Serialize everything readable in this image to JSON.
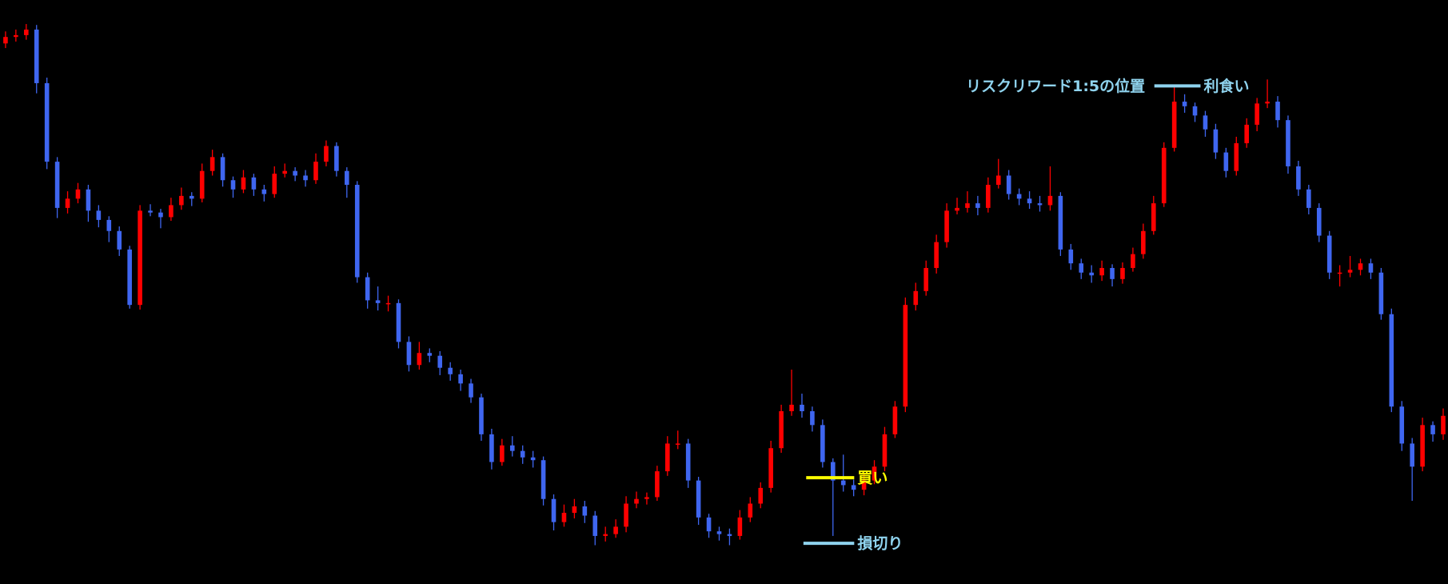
{
  "chart_data": {
    "type": "candlestick",
    "up_color": "#ff0000",
    "down_color": "#3f66f0",
    "ylim": [
      0,
      632
    ],
    "ohlc": [
      [
        585,
        598,
        580,
        592
      ],
      [
        592,
        600,
        587,
        594
      ],
      [
        594,
        606,
        589,
        600
      ],
      [
        600,
        605,
        531,
        542
      ],
      [
        542,
        548,
        449,
        457
      ],
      [
        457,
        462,
        396,
        407
      ],
      [
        407,
        425,
        401,
        417
      ],
      [
        417,
        434,
        412,
        427
      ],
      [
        427,
        432,
        392,
        404
      ],
      [
        404,
        410,
        386,
        394
      ],
      [
        394,
        398,
        370,
        382
      ],
      [
        382,
        387,
        355,
        362
      ],
      [
        362,
        366,
        298,
        302
      ],
      [
        302,
        410,
        297,
        404
      ],
      [
        404,
        411,
        398,
        402
      ],
      [
        402,
        406,
        385,
        397
      ],
      [
        397,
        418,
        393,
        410
      ],
      [
        410,
        429,
        405,
        420
      ],
      [
        420,
        424,
        409,
        417
      ],
      [
        417,
        455,
        413,
        447
      ],
      [
        447,
        470,
        442,
        462
      ],
      [
        462,
        466,
        430,
        437
      ],
      [
        437,
        441,
        418,
        427
      ],
      [
        427,
        448,
        423,
        440
      ],
      [
        440,
        444,
        420,
        427
      ],
      [
        427,
        432,
        414,
        422
      ],
      [
        422,
        452,
        418,
        444
      ],
      [
        444,
        455,
        440,
        447
      ],
      [
        447,
        451,
        436,
        442
      ],
      [
        442,
        448,
        430,
        437
      ],
      [
        437,
        466,
        433,
        457
      ],
      [
        457,
        480,
        452,
        474
      ],
      [
        474,
        478,
        441,
        447
      ],
      [
        447,
        451,
        418,
        432
      ],
      [
        432,
        436,
        326,
        332
      ],
      [
        332,
        337,
        298,
        307
      ],
      [
        307,
        322,
        296,
        304
      ],
      [
        304,
        312,
        295,
        304
      ],
      [
        304,
        308,
        255,
        262
      ],
      [
        262,
        268,
        230,
        237
      ],
      [
        237,
        262,
        232,
        250
      ],
      [
        250,
        255,
        240,
        247
      ],
      [
        247,
        252,
        226,
        234
      ],
      [
        234,
        240,
        220,
        227
      ],
      [
        227,
        232,
        209,
        217
      ],
      [
        217,
        222,
        196,
        202
      ],
      [
        202,
        206,
        155,
        162
      ],
      [
        162,
        168,
        124,
        132
      ],
      [
        132,
        157,
        128,
        150
      ],
      [
        150,
        160,
        138,
        144
      ],
      [
        144,
        150,
        130,
        137
      ],
      [
        137,
        144,
        126,
        134
      ],
      [
        134,
        138,
        85,
        92
      ],
      [
        92,
        97,
        58,
        67
      ],
      [
        67,
        86,
        62,
        77
      ],
      [
        77,
        92,
        71,
        84
      ],
      [
        84,
        90,
        66,
        74
      ],
      [
        74,
        79,
        42,
        52
      ],
      [
        52,
        62,
        46,
        54
      ],
      [
        54,
        70,
        50,
        62
      ],
      [
        62,
        95,
        56,
        87
      ],
      [
        87,
        100,
        82,
        92
      ],
      [
        92,
        99,
        86,
        94
      ],
      [
        94,
        128,
        90,
        122
      ],
      [
        122,
        160,
        117,
        152
      ],
      [
        152,
        166,
        146,
        152
      ],
      [
        152,
        157,
        104,
        112
      ],
      [
        112,
        116,
        64,
        72
      ],
      [
        72,
        76,
        50,
        57
      ],
      [
        57,
        62,
        47,
        54
      ],
      [
        54,
        60,
        42,
        52
      ],
      [
        52,
        80,
        48,
        72
      ],
      [
        72,
        94,
        67,
        87
      ],
      [
        87,
        110,
        82,
        104
      ],
      [
        104,
        155,
        99,
        147
      ],
      [
        147,
        194,
        142,
        187
      ],
      [
        187,
        232,
        182,
        194
      ],
      [
        194,
        206,
        180,
        187
      ],
      [
        187,
        192,
        165,
        172
      ],
      [
        172,
        178,
        126,
        132
      ],
      [
        132,
        136,
        52,
        112
      ],
      [
        112,
        140,
        100,
        107
      ],
      [
        107,
        113,
        95,
        102
      ],
      [
        102,
        120,
        96,
        112
      ],
      [
        112,
        134,
        108,
        127
      ],
      [
        127,
        170,
        122,
        162
      ],
      [
        162,
        198,
        158,
        192
      ],
      [
        192,
        310,
        186,
        302
      ],
      [
        302,
        326,
        296,
        317
      ],
      [
        317,
        350,
        312,
        342
      ],
      [
        342,
        378,
        336,
        370
      ],
      [
        370,
        412,
        364,
        404
      ],
      [
        404,
        418,
        400,
        407
      ],
      [
        407,
        425,
        402,
        412
      ],
      [
        412,
        420,
        399,
        407
      ],
      [
        407,
        440,
        402,
        432
      ],
      [
        432,
        460,
        428,
        442
      ],
      [
        442,
        448,
        416,
        422
      ],
      [
        422,
        428,
        410,
        417
      ],
      [
        417,
        425,
        406,
        412
      ],
      [
        412,
        420,
        403,
        410
      ],
      [
        410,
        452,
        404,
        420
      ],
      [
        420,
        424,
        355,
        362
      ],
      [
        362,
        368,
        340,
        347
      ],
      [
        347,
        352,
        330,
        337
      ],
      [
        337,
        345,
        326,
        334
      ],
      [
        334,
        350,
        328,
        342
      ],
      [
        342,
        346,
        322,
        330
      ],
      [
        330,
        348,
        325,
        342
      ],
      [
        342,
        364,
        338,
        357
      ],
      [
        357,
        390,
        352,
        382
      ],
      [
        382,
        420,
        378,
        412
      ],
      [
        412,
        478,
        408,
        472
      ],
      [
        472,
        538,
        468,
        522
      ],
      [
        522,
        530,
        510,
        517
      ],
      [
        517,
        521,
        500,
        507
      ],
      [
        507,
        512,
        484,
        492
      ],
      [
        492,
        498,
        460,
        467
      ],
      [
        467,
        472,
        440,
        447
      ],
      [
        447,
        484,
        442,
        477
      ],
      [
        477,
        504,
        472,
        497
      ],
      [
        497,
        526,
        490,
        520
      ],
      [
        520,
        546,
        515,
        522
      ],
      [
        522,
        528,
        494,
        502
      ],
      [
        502,
        507,
        444,
        452
      ],
      [
        452,
        458,
        420,
        427
      ],
      [
        427,
        432,
        400,
        407
      ],
      [
        407,
        412,
        370,
        377
      ],
      [
        377,
        382,
        330,
        337
      ],
      [
        337,
        345,
        322,
        337
      ],
      [
        337,
        355,
        332,
        340
      ],
      [
        340,
        352,
        334,
        347
      ],
      [
        347,
        352,
        330,
        337
      ],
      [
        337,
        342,
        286,
        292
      ],
      [
        292,
        298,
        186,
        192
      ],
      [
        192,
        198,
        144,
        152
      ],
      [
        152,
        158,
        90,
        127
      ],
      [
        127,
        180,
        122,
        172
      ],
      [
        172,
        176,
        154,
        162
      ],
      [
        162,
        190,
        156,
        182
      ]
    ],
    "levels": [
      {
        "label": "買い",
        "value": 115,
        "color": "#ffff00"
      },
      {
        "label": "損切り",
        "value": 44,
        "color": "#8fd3ee"
      },
      {
        "label": "利食い",
        "value": 539,
        "color": "#8fd3ee"
      }
    ],
    "note": "リスクリワード1:5の位置"
  }
}
